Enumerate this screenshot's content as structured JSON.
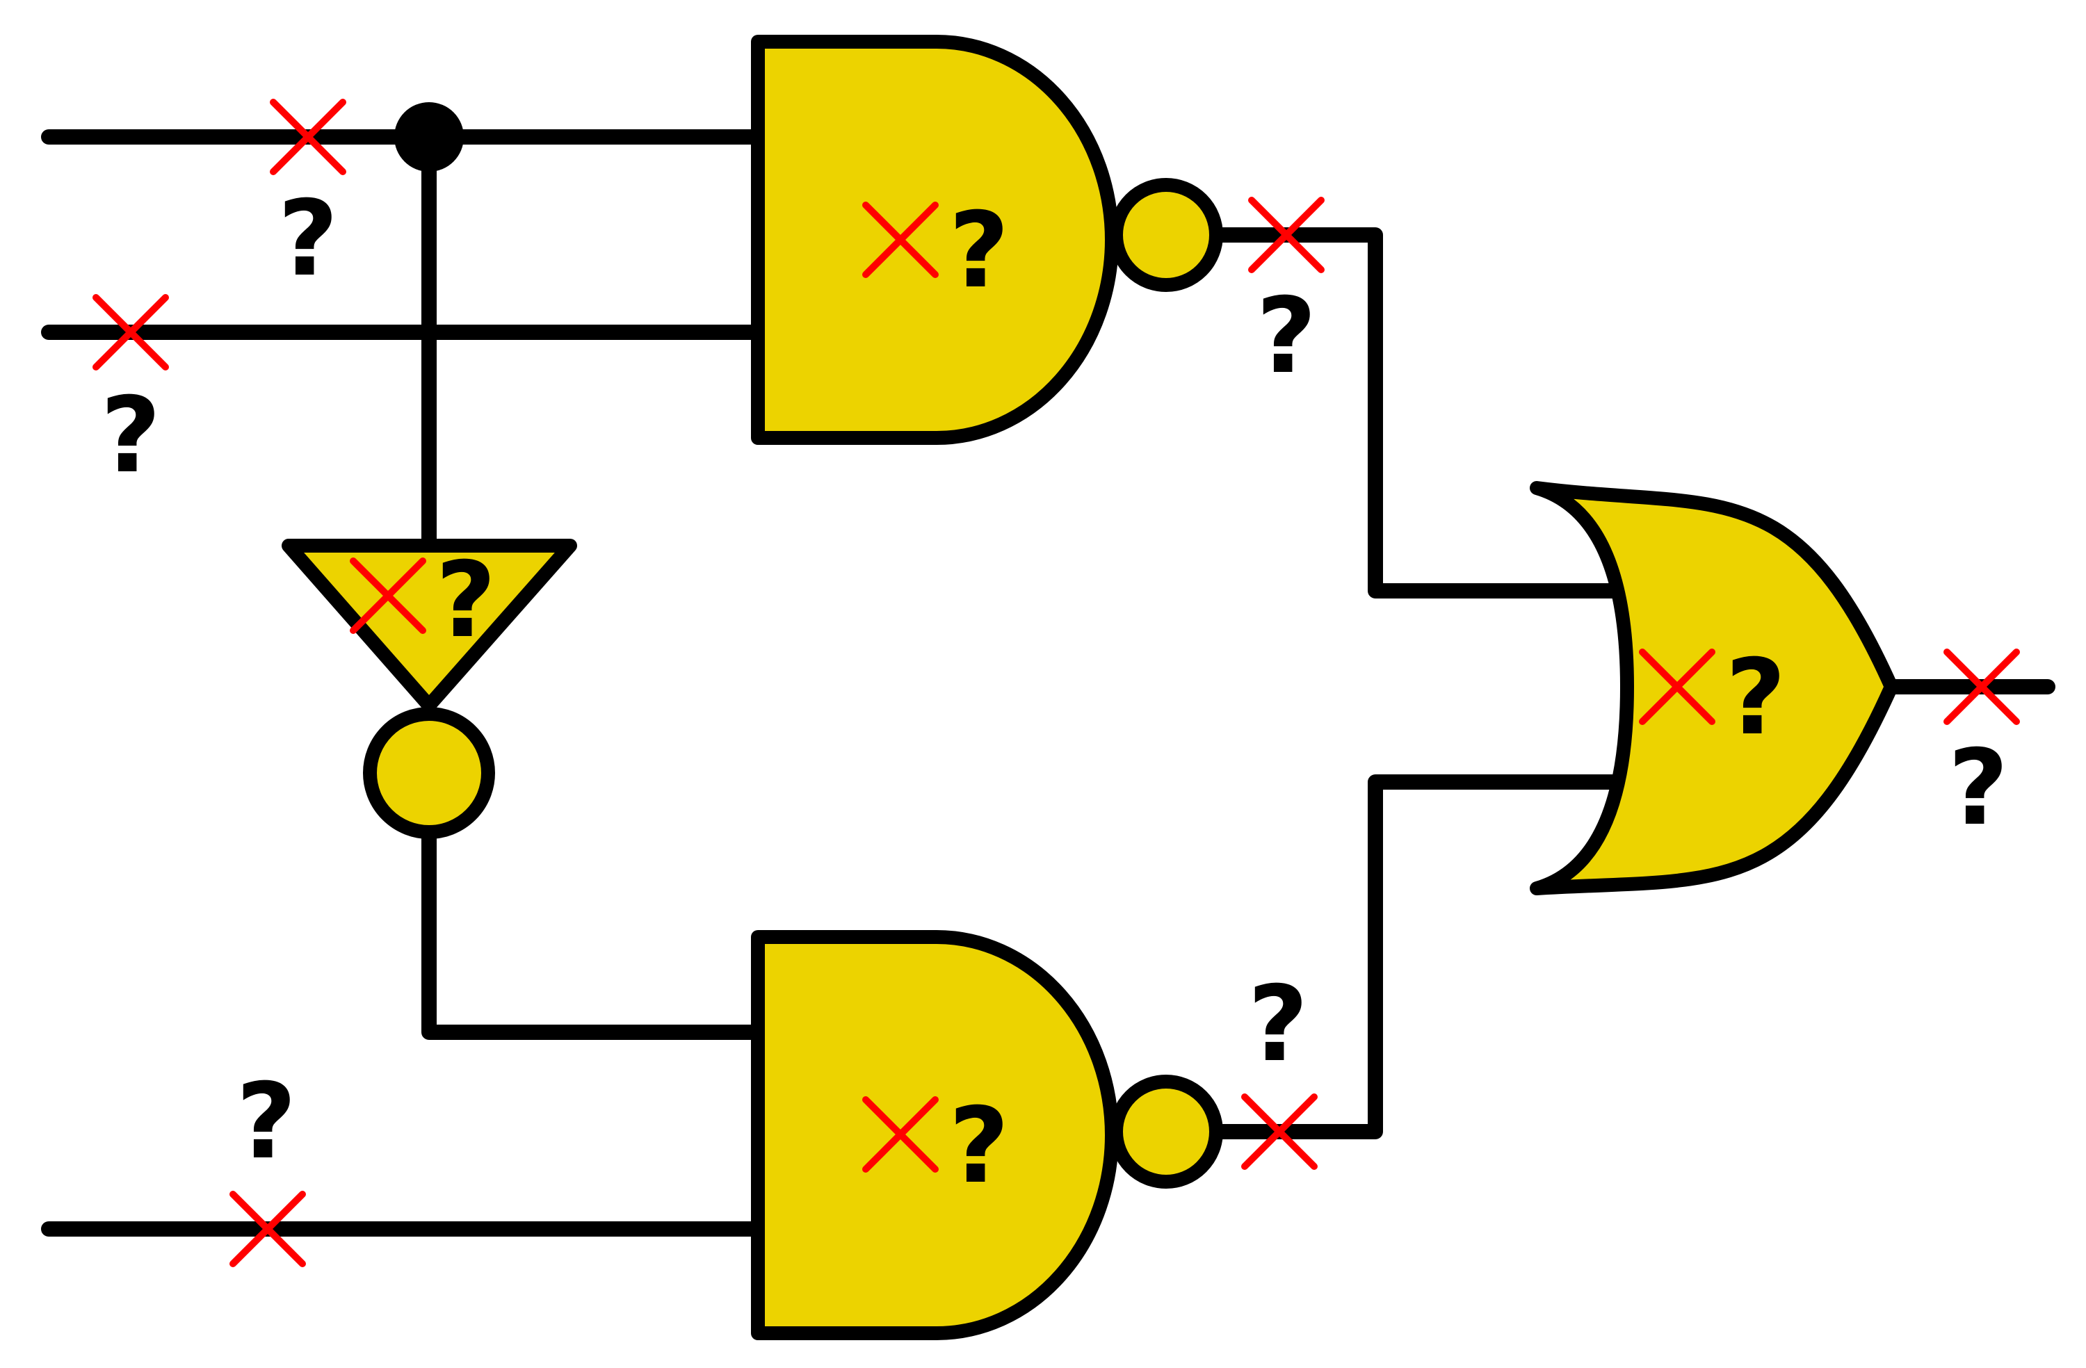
{
  "colors": {
    "gate_fill": "#ecd300",
    "wire": "#000000",
    "cross": "#ff0000"
  },
  "gates": [
    {
      "id": "nand-top",
      "type": "NAND",
      "label": "?"
    },
    {
      "id": "not",
      "type": "NOT",
      "label": "?"
    },
    {
      "id": "nand-bottom",
      "type": "NAND",
      "label": "?"
    },
    {
      "id": "or",
      "type": "OR",
      "label": "?"
    }
  ],
  "wire_labels": [
    {
      "id": "input-a",
      "label": "?"
    },
    {
      "id": "input-b",
      "label": "?"
    },
    {
      "id": "input-c",
      "label": "?"
    },
    {
      "id": "nand-top-output",
      "label": "?"
    },
    {
      "id": "nand-bottom-output",
      "label": "?"
    },
    {
      "id": "circuit-output",
      "label": "?"
    }
  ]
}
